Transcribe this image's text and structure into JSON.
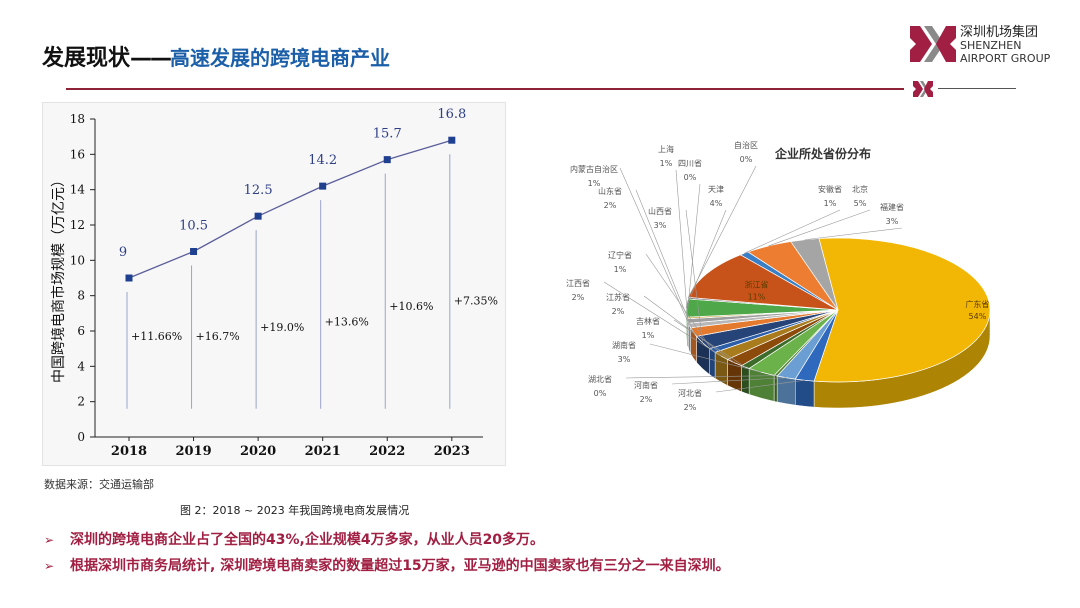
{
  "header": {
    "title_main": "发展现状",
    "title_dash": "——",
    "title_sub": "高速发展的跨境电商产业"
  },
  "logo": {
    "name_cn": "深圳机场集团",
    "name_en_1": "SHENZHEN",
    "name_en_2": "AIRPORT GROUP",
    "colors": {
      "brand_red": "#a01f42",
      "brand_gray": "#8a8a8a"
    }
  },
  "chart_data": [
    {
      "type": "line",
      "title": "",
      "ylabel": "中国跨境电商市场规模（万亿元）",
      "xlabel": "",
      "x": [
        "2018",
        "2019",
        "2020",
        "2021",
        "2022",
        "2023"
      ],
      "values": [
        9,
        10.5,
        12.5,
        14.2,
        15.7,
        16.8
      ],
      "value_labels": [
        "9",
        "10.5",
        "12.5",
        "14.2",
        "15.7",
        "16.8"
      ],
      "growth_labels": [
        "+11.66%",
        "+16.7%",
        "+19.0%",
        "+13.6%",
        "+10.6%",
        "+7.35%"
      ],
      "growth_label_levels": [
        5.5,
        5.5,
        6.0,
        6.3,
        7.2,
        7.5
      ],
      "yticks": [
        "0",
        "2",
        "4",
        "6",
        "8",
        "10",
        "12",
        "14",
        "16",
        "18"
      ],
      "ylim": [
        0,
        18
      ],
      "line_color": "#5b5e9a",
      "marker_color": "#1f3f8f"
    },
    {
      "type": "pie",
      "title": "企业所处省份分布",
      "slices": [
        {
          "name": "广东省",
          "value": 54,
          "label": "54%",
          "color": "#f2b705"
        },
        {
          "name": "河北省",
          "value": 2,
          "label": "2%",
          "color": "#2e69bd"
        },
        {
          "name": "河南省",
          "value": 2,
          "label": "2%",
          "color": "#6b9fd4"
        },
        {
          "name": "湖北省",
          "value": 0,
          "label": "0%",
          "color": "#4f7f2e"
        },
        {
          "name": "湖南省",
          "value": 3,
          "label": "3%",
          "color": "#6cb24a"
        },
        {
          "name": "吉林省",
          "value": 1,
          "label": "1%",
          "color": "#3d6b2a"
        },
        {
          "name": "江苏省",
          "value": 2,
          "label": "2%",
          "color": "#8c4a0b"
        },
        {
          "name": "江西省",
          "value": 2,
          "label": "2%",
          "color": "#a87b1c"
        },
        {
          "name": "辽宁省",
          "value": 1,
          "label": "1%",
          "color": "#2d5ea8"
        },
        {
          "name": "山西省",
          "value": 3,
          "label": "3%",
          "color": "#264478"
        },
        {
          "name": "山东省",
          "value": 2,
          "label": "2%",
          "color": "#e47a2e"
        },
        {
          "name": "内蒙古自治区",
          "value": 1,
          "label": "1%",
          "color": "#b7b7b7"
        },
        {
          "name": "上海",
          "value": 1,
          "label": "1%",
          "color": "#9e9e9e"
        },
        {
          "name": "四川省",
          "value": 0,
          "label": "0%",
          "color": "#c9a23a"
        },
        {
          "name": "天津",
          "value": 4,
          "label": "4%",
          "color": "#4ea84a"
        },
        {
          "name": "自治区",
          "value": 0,
          "label": "0%",
          "color": "#7a7a7a"
        },
        {
          "name": "浙江省",
          "value": 11,
          "label": "11%",
          "color": "#c8531a"
        },
        {
          "name": "安徽省",
          "value": 1,
          "label": "1%",
          "color": "#3a7fc6"
        },
        {
          "name": "北京",
          "value": 5,
          "label": "5%",
          "color": "#ed7d31"
        },
        {
          "name": "福建省",
          "value": 3,
          "label": "3%",
          "color": "#a5a5a5"
        }
      ]
    }
  ],
  "source_text": "数据来源：交通运输部",
  "caption": "图 2：2018 ~ 2023 年我国跨境电商发展情况",
  "bullets": [
    {
      "arrow": "➢",
      "text": "深圳的跨境电商企业占了全国的43%,企业规模4万多家，从业人员20多万。"
    },
    {
      "arrow": "➢",
      "text": "根据深圳市商务局统计, 深圳跨境电商卖家的数量超过15万家，亚马逊的中国卖家也有三分之一来自深圳。"
    }
  ]
}
